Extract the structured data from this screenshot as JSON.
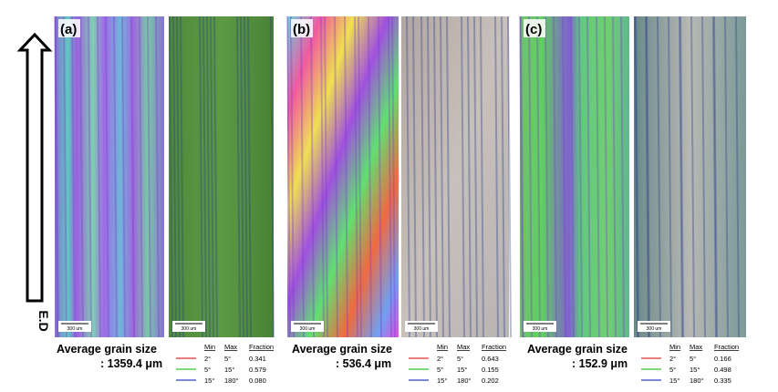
{
  "arrow_label": "E.D",
  "panels": [
    {
      "label": "(a)",
      "scale_bars": [
        "300 um",
        "300 um"
      ],
      "size_label": "Average grain size",
      "size_value": ": 1359.4 μm",
      "table": {
        "header": [
          "Min",
          "Max",
          "Fraction"
        ],
        "rows": [
          [
            "2°",
            "5°",
            "0.341"
          ],
          [
            "5°",
            "15°",
            "0.579"
          ],
          [
            "15°",
            "180°",
            "0.080"
          ]
        ]
      }
    },
    {
      "label": "(b)",
      "scale_bars": [
        "300 um",
        "300 um"
      ],
      "size_label": "Average grain size",
      "size_value": ": 536.4 μm",
      "table": {
        "header": [
          "Min",
          "Max",
          "Fraction"
        ],
        "rows": [
          [
            "2°",
            "5°",
            "0.643"
          ],
          [
            "5°",
            "15°",
            "0.155"
          ],
          [
            "15°",
            "180°",
            "0.202"
          ]
        ]
      }
    },
    {
      "label": "(c)",
      "scale_bars": [
        "300 um",
        "300 um"
      ],
      "size_label": "Average grain size",
      "size_value": ": 152.9 μm",
      "table": {
        "header": [
          "Min",
          "Max",
          "Fraction"
        ],
        "rows": [
          [
            "2°",
            "5°",
            "0.166"
          ],
          [
            "5°",
            "15°",
            "0.498"
          ],
          [
            "15°",
            "180°",
            "0.335"
          ]
        ]
      }
    }
  ]
}
